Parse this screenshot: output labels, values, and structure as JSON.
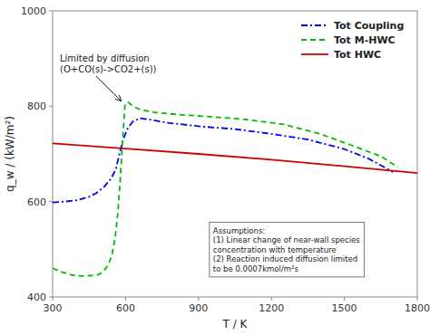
{
  "chart_data": {
    "type": "line",
    "title": "",
    "xlabel": "T / K",
    "ylabel": "q_w / (kW/m²)",
    "xlim": [
      300,
      1800
    ],
    "ylim": [
      400,
      1000
    ],
    "xticks": [
      300,
      600,
      900,
      1200,
      1500,
      1800
    ],
    "yticks": [
      400,
      600,
      800,
      1000
    ],
    "grid": false,
    "legend": "upper right",
    "series": [
      {
        "name": "Tot Coupling",
        "color": "#0000EE",
        "line_style": "dashdot",
        "x": [
          300,
          350,
          400,
          450,
          480,
          510,
          540,
          560,
          575,
          590,
          610,
          630,
          660,
          700,
          780,
          900,
          1050,
          1200,
          1350,
          1500,
          1600,
          1700
        ],
        "values": [
          598,
          600,
          603,
          610,
          618,
          630,
          648,
          668,
          700,
          730,
          755,
          768,
          775,
          772,
          765,
          758,
          752,
          742,
          730,
          710,
          690,
          662
        ]
      },
      {
        "name": "Tot M-HWC",
        "color": "#00BB00",
        "line_style": "dashed",
        "x": [
          300,
          340,
          380,
          420,
          460,
          490,
          510,
          530,
          545,
          558,
          568,
          578,
          588,
          598,
          612,
          630,
          660,
          720,
          830,
          950,
          1100,
          1250,
          1400,
          1530,
          1650,
          1720
        ],
        "values": [
          460,
          452,
          446,
          444,
          445,
          447,
          454,
          468,
          490,
          528,
          575,
          645,
          730,
          805,
          808,
          800,
          793,
          787,
          782,
          778,
          772,
          762,
          742,
          718,
          695,
          672
        ]
      },
      {
        "name": "Tot HWC",
        "color": "#CC0000",
        "line_style": "solid",
        "x": [
          300,
          600,
          900,
          1200,
          1500,
          1800
        ],
        "values": [
          722,
          711,
          700,
          688,
          674,
          660
        ]
      }
    ],
    "annotations": [
      {
        "text": "Limited by diffusion\n(O+CO(s)->CO2+(s))",
        "x": 588,
        "y": 806
      },
      {
        "text": "Assumptions:\n(1) Linear change of near-wall species\nconcentration with temperature\n(2) Reaction induced diffusion limited\nto be 0.0007kmol/m²s"
      }
    ]
  }
}
